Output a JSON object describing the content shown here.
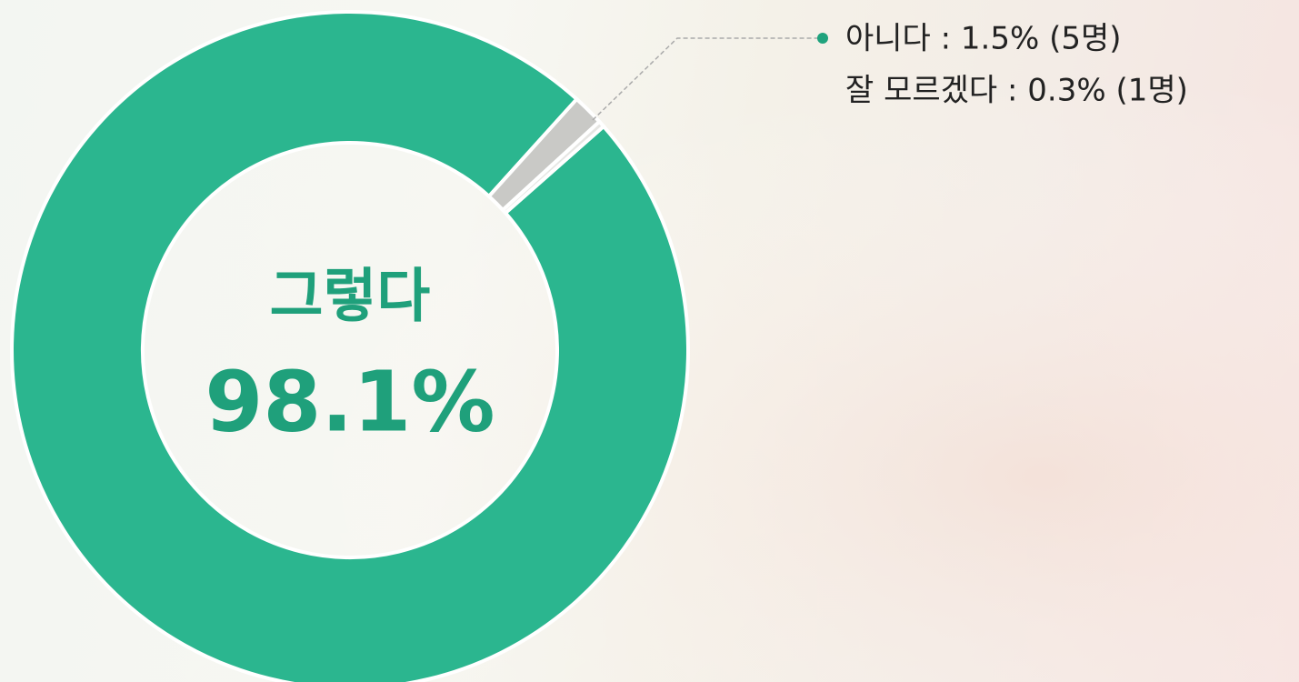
{
  "chart_data": {
    "type": "donut",
    "categories": [
      "그렇다",
      "아니다 : 1.5% (5명)",
      "잘 모르겠다 : 0.3% (1명)"
    ],
    "values": [
      98.1,
      1.5,
      0.3
    ],
    "value_labels": [
      "98.1%",
      null,
      null
    ],
    "colors": [
      "#2bb68f",
      "#c9c9c6",
      "#e6e6e3"
    ]
  }
}
